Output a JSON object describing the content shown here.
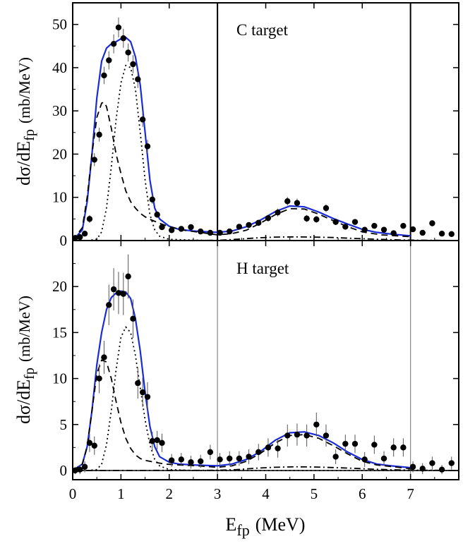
{
  "chart_data": [
    {
      "type": "scatter",
      "panel_label": "C target",
      "xlabel": "E",
      "xlabel_sub": "fp",
      "xlabel_unit": "(MeV)",
      "ylabel": "dσ/dE",
      "ylabel_sub": "fp",
      "ylabel_unit": "(mb/MeV)",
      "xlim": [
        0,
        8
      ],
      "ylim": [
        0,
        55
      ],
      "xticks": [
        0,
        1,
        2,
        3,
        4,
        5,
        6,
        7
      ],
      "yticks": [
        0,
        10,
        20,
        30,
        40,
        50
      ],
      "vertical_lines": [
        3,
        7
      ],
      "colors": {
        "total": "#1a2bd6",
        "points": "#000000"
      },
      "series": [
        {
          "style": "points",
          "x": [
            0.05,
            0.15,
            0.25,
            0.35,
            0.45,
            0.55,
            0.65,
            0.75,
            0.85,
            0.95,
            1.05,
            1.15,
            1.25,
            1.35,
            1.45,
            1.55,
            1.65,
            1.75,
            1.85,
            2.05,
            2.25,
            2.45,
            2.65,
            2.85,
            3.05,
            3.25,
            3.45,
            3.65,
            3.85,
            4.05,
            4.25,
            4.45,
            4.65,
            4.85,
            5.05,
            5.25,
            5.45,
            5.65,
            5.85,
            6.05,
            6.25,
            6.45,
            6.65,
            6.85,
            7.05,
            7.25,
            7.45,
            7.65,
            7.85
          ],
          "y": [
            0.6,
            0.8,
            1.6,
            5.0,
            18.7,
            24.5,
            38.2,
            41.7,
            45.5,
            49.3,
            46.8,
            43.5,
            40.8,
            37.3,
            28.0,
            21.8,
            9.5,
            6.0,
            3.1,
            2.4,
            2.7,
            3.1,
            2.1,
            1.8,
            1.8,
            2.1,
            3.2,
            3.6,
            4.1,
            5.2,
            6.5,
            9.1,
            8.7,
            5.1,
            4.9,
            7.5,
            4.3,
            3.2,
            4.3,
            2.5,
            3.4,
            2.5,
            1.7,
            3.4,
            2.6,
            1.8,
            4.0,
            1.6,
            1.5
          ],
          "yerr": [
            0.4,
            0.5,
            0.6,
            0.9,
            1.5,
            1.6,
            2.0,
            2.1,
            2.2,
            2.3,
            2.2,
            2.1,
            2.1,
            2.0,
            1.7,
            1.5,
            1.0,
            0.8,
            0.6,
            0.5,
            0.6,
            0.6,
            0.5,
            0.5,
            0.5,
            0.5,
            0.6,
            0.6,
            0.7,
            0.8,
            0.9,
            1.0,
            1.0,
            0.8,
            0.8,
            0.9,
            0.7,
            0.6,
            0.7,
            0.6,
            0.6,
            0.6,
            0.5,
            0.6,
            0.6,
            0.5,
            0.7,
            0.5,
            0.5
          ]
        },
        {
          "style": "solid",
          "x": [
            0,
            0.2,
            0.3,
            0.4,
            0.5,
            0.6,
            0.7,
            0.8,
            0.9,
            1.0,
            1.1,
            1.2,
            1.3,
            1.4,
            1.5,
            1.6,
            1.7,
            1.8,
            2.0,
            2.2,
            2.5,
            3.0,
            3.3,
            3.6,
            3.9,
            4.2,
            4.5,
            4.8,
            5.1,
            5.4,
            5.7,
            6.0,
            6.3,
            6.6,
            7.0
          ],
          "y": [
            0.0,
            2.5,
            9.0,
            20.0,
            33.0,
            41.5,
            44.5,
            45.5,
            46.0,
            46.7,
            47.0,
            46.0,
            42.5,
            36.0,
            25.0,
            14.0,
            7.5,
            5.0,
            3.3,
            2.6,
            2.2,
            1.9,
            2.2,
            3.2,
            4.8,
            6.7,
            8.0,
            7.8,
            6.6,
            5.1,
            3.8,
            2.6,
            1.9,
            1.5,
            1.1
          ]
        },
        {
          "style": "dashed",
          "x": [
            0,
            0.2,
            0.3,
            0.4,
            0.5,
            0.6,
            0.65,
            0.7,
            0.8,
            0.9,
            1.0,
            1.1,
            1.2,
            1.3,
            1.4,
            1.5,
            1.6,
            1.8,
            2.0,
            2.3,
            2.7,
            3.0,
            3.3,
            3.6,
            3.9,
            4.2,
            4.5,
            4.8,
            5.1,
            5.4,
            5.7,
            6.0,
            6.4,
            7.0
          ],
          "y": [
            0.0,
            3.0,
            10.0,
            20.0,
            28.5,
            31.8,
            32.0,
            31.0,
            26.0,
            20.0,
            15.5,
            11.5,
            9.0,
            7.5,
            6.3,
            5.5,
            4.9,
            4.0,
            3.2,
            2.4,
            1.8,
            1.3,
            1.6,
            2.4,
            4.1,
            6.0,
            7.4,
            7.3,
            6.1,
            4.6,
            3.2,
            2.0,
            1.3,
            0.9
          ]
        },
        {
          "style": "dotted",
          "x": [
            0.3,
            0.5,
            0.6,
            0.7,
            0.8,
            0.9,
            1.0,
            1.1,
            1.2,
            1.3,
            1.4,
            1.5,
            1.6,
            1.7,
            1.8,
            2.0,
            2.5,
            3.0,
            4.0,
            5.0,
            6.0,
            7.0,
            8.0
          ],
          "y": [
            0.0,
            0.3,
            2.0,
            7.5,
            17.0,
            28.0,
            36.5,
            40.5,
            40.0,
            35.0,
            25.0,
            14.0,
            6.0,
            2.5,
            1.0,
            0.3,
            0.1,
            0.0,
            0.0,
            0.0,
            0.0,
            0.0,
            0.0
          ]
        },
        {
          "style": "dashdot",
          "x": [
            0,
            3.0,
            3.4,
            3.8,
            4.2,
            4.6,
            5.0,
            5.4,
            5.8,
            6.2,
            6.6,
            7.0,
            8.0
          ],
          "y": [
            0.0,
            0.05,
            0.3,
            0.6,
            0.8,
            0.85,
            0.8,
            0.7,
            0.5,
            0.35,
            0.2,
            0.1,
            0.0
          ]
        }
      ]
    },
    {
      "type": "scatter",
      "panel_label": "H target",
      "xlabel": "E",
      "xlabel_sub": "fp",
      "xlabel_unit": "(MeV)",
      "ylabel": "dσ/dE",
      "ylabel_sub": "fp",
      "ylabel_unit": "(mb/MeV)",
      "xlim": [
        0,
        8
      ],
      "ylim": [
        -1,
        25
      ],
      "xticks": [
        0,
        1,
        2,
        3,
        4,
        5,
        6,
        7
      ],
      "yticks": [
        0,
        5,
        10,
        15,
        20
      ],
      "vertical_lines": [
        3,
        7
      ],
      "colors": {
        "total": "#1a2bd6",
        "points": "#000000"
      },
      "series": [
        {
          "style": "points",
          "x": [
            0.05,
            0.15,
            0.25,
            0.35,
            0.45,
            0.55,
            0.65,
            0.75,
            0.85,
            0.95,
            1.05,
            1.15,
            1.25,
            1.35,
            1.45,
            1.55,
            1.65,
            1.75,
            1.85,
            2.05,
            2.25,
            2.45,
            2.65,
            2.85,
            3.05,
            3.25,
            3.45,
            3.65,
            3.85,
            4.05,
            4.25,
            4.45,
            4.65,
            4.85,
            5.05,
            5.25,
            5.45,
            5.65,
            5.85,
            6.05,
            6.25,
            6.45,
            6.65,
            6.85,
            7.05,
            7.25,
            7.45,
            7.65,
            7.85
          ],
          "y": [
            0.0,
            0.1,
            0.4,
            3.0,
            2.7,
            10.0,
            12.3,
            18.0,
            19.7,
            19.3,
            19.2,
            21.1,
            16.5,
            9.5,
            8.5,
            8.0,
            3.2,
            3.3,
            3.0,
            1.1,
            1.2,
            0.9,
            1.0,
            2.0,
            1.2,
            1.3,
            1.3,
            1.5,
            2.0,
            2.5,
            2.4,
            3.8,
            3.9,
            3.8,
            5.0,
            3.8,
            1.5,
            2.9,
            2.9,
            1.2,
            2.8,
            1.3,
            2.5,
            2.5,
            0.4,
            0.2,
            0.8,
            0.1,
            0.8
          ],
          "yerr": [
            0.4,
            0.5,
            0.6,
            1.0,
            1.0,
            1.6,
            1.8,
            2.2,
            2.3,
            2.3,
            2.3,
            2.4,
            2.1,
            1.7,
            1.6,
            1.6,
            1.0,
            1.0,
            1.0,
            0.7,
            0.7,
            0.7,
            0.7,
            0.8,
            0.7,
            0.8,
            0.8,
            0.8,
            0.9,
            1.0,
            1.0,
            1.2,
            1.2,
            1.2,
            1.3,
            1.2,
            0.8,
            1.0,
            1.0,
            0.8,
            1.0,
            0.8,
            1.0,
            1.0,
            0.6,
            0.6,
            0.7,
            0.5,
            0.7
          ]
        },
        {
          "style": "solid",
          "x": [
            0,
            0.2,
            0.3,
            0.4,
            0.5,
            0.6,
            0.7,
            0.8,
            0.9,
            1.0,
            1.1,
            1.2,
            1.3,
            1.4,
            1.5,
            1.6,
            1.7,
            1.8,
            2.0,
            2.2,
            2.5,
            3.0,
            3.3,
            3.6,
            3.9,
            4.2,
            4.5,
            4.8,
            5.1,
            5.4,
            5.7,
            6.0,
            6.3,
            6.6,
            7.0
          ],
          "y": [
            0.0,
            0.7,
            2.6,
            6.5,
            11.5,
            15.0,
            17.5,
            18.8,
            19.3,
            19.5,
            19.4,
            18.7,
            16.5,
            13.0,
            8.5,
            4.8,
            2.6,
            1.5,
            0.9,
            0.7,
            0.6,
            0.5,
            0.7,
            1.2,
            2.1,
            3.3,
            4.1,
            4.2,
            3.8,
            3.0,
            2.0,
            1.2,
            0.7,
            0.5,
            0.3
          ]
        },
        {
          "style": "dashed",
          "x": [
            0,
            0.2,
            0.3,
            0.4,
            0.5,
            0.6,
            0.7,
            0.8,
            0.9,
            1.0,
            1.1,
            1.2,
            1.3,
            1.4,
            1.5,
            1.7,
            1.9,
            2.2,
            2.6,
            3.0,
            3.3,
            3.6,
            3.9,
            4.2,
            4.5,
            4.8,
            5.1,
            5.4,
            5.7,
            6.0,
            6.3,
            7.0
          ],
          "y": [
            0.0,
            0.7,
            2.6,
            6.5,
            10.5,
            12.0,
            11.8,
            10.0,
            7.5,
            5.2,
            3.5,
            2.4,
            1.7,
            1.3,
            1.1,
            0.9,
            0.7,
            0.6,
            0.5,
            0.35,
            0.5,
            1.0,
            1.9,
            3.0,
            3.8,
            3.9,
            3.5,
            2.7,
            1.8,
            1.0,
            0.6,
            0.2
          ]
        },
        {
          "style": "dotted",
          "x": [
            0.3,
            0.5,
            0.6,
            0.7,
            0.8,
            0.9,
            1.0,
            1.1,
            1.2,
            1.3,
            1.4,
            1.5,
            1.6,
            1.7,
            1.8,
            2.0,
            2.5,
            3.0,
            4.0,
            5.0,
            6.0,
            7.0,
            8.0
          ],
          "y": [
            0.0,
            0.1,
            0.7,
            2.8,
            6.5,
            11.0,
            14.5,
            15.6,
            15.0,
            12.5,
            9.0,
            5.5,
            2.8,
            1.2,
            0.5,
            0.1,
            0.0,
            0.0,
            0.0,
            0.0,
            0.0,
            0.0,
            0.0
          ]
        },
        {
          "style": "dashdot",
          "x": [
            0,
            3.0,
            3.4,
            3.8,
            4.2,
            4.6,
            5.0,
            5.4,
            5.8,
            6.2,
            6.6,
            7.0,
            8.0
          ],
          "y": [
            0.0,
            0.02,
            0.1,
            0.25,
            0.35,
            0.4,
            0.38,
            0.32,
            0.24,
            0.15,
            0.08,
            0.04,
            0.0
          ]
        }
      ]
    }
  ]
}
